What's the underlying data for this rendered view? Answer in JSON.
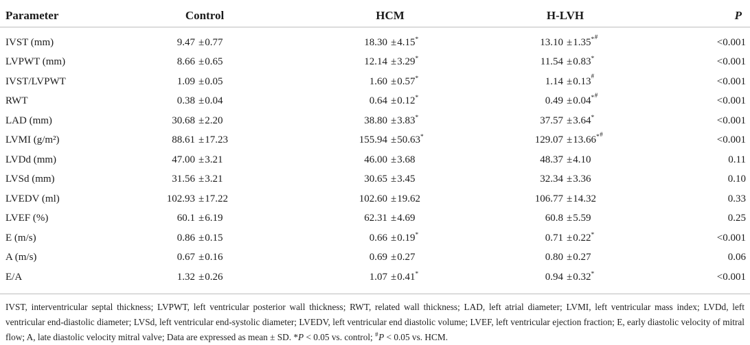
{
  "table": {
    "headers": {
      "parameter": "Parameter",
      "control": "Control",
      "hcm": "HCM",
      "hlvh": "H-LVH",
      "p": "P"
    },
    "plus_minus": "±",
    "rows": [
      {
        "param": "IVST (mm)",
        "control_mean": "9.47",
        "control_sd": "0.77",
        "control_sup": "",
        "hcm_mean": "18.30",
        "hcm_sd": "4.15",
        "hcm_sup": "*",
        "hlvh_mean": "13.10",
        "hlvh_sd": "1.35",
        "hlvh_sup": "*#",
        "p": "<0.001"
      },
      {
        "param": "LVPWT (mm)",
        "control_mean": "8.66",
        "control_sd": "0.65",
        "control_sup": "",
        "hcm_mean": "12.14",
        "hcm_sd": "3.29",
        "hcm_sup": "*",
        "hlvh_mean": "11.54",
        "hlvh_sd": "0.83",
        "hlvh_sup": "*",
        "p": "<0.001"
      },
      {
        "param": "IVST/LVPWT",
        "control_mean": "1.09",
        "control_sd": "0.05",
        "control_sup": "",
        "hcm_mean": "1.60",
        "hcm_sd": "0.57",
        "hcm_sup": "*",
        "hlvh_mean": "1.14",
        "hlvh_sd": "0.13",
        "hlvh_sup": "#",
        "p": "<0.001"
      },
      {
        "param": "RWT",
        "control_mean": "0.38",
        "control_sd": "0.04",
        "control_sup": "",
        "hcm_mean": "0.64",
        "hcm_sd": "0.12",
        "hcm_sup": "*",
        "hlvh_mean": "0.49",
        "hlvh_sd": "0.04",
        "hlvh_sup": "*#",
        "p": "<0.001"
      },
      {
        "param": "LAD (mm)",
        "control_mean": "30.68",
        "control_sd": "2.20",
        "control_sup": "",
        "hcm_mean": "38.80",
        "hcm_sd": "3.83",
        "hcm_sup": "*",
        "hlvh_mean": "37.57",
        "hlvh_sd": "3.64",
        "hlvh_sup": "*",
        "p": "<0.001"
      },
      {
        "param": "LVMI (g/m²)",
        "control_mean": "88.61",
        "control_sd": "17.23",
        "control_sup": "",
        "hcm_mean": "155.94",
        "hcm_sd": "50.63",
        "hcm_sup": "*",
        "hlvh_mean": "129.07",
        "hlvh_sd": "13.66",
        "hlvh_sup": "*#",
        "p": "<0.001"
      },
      {
        "param": "LVDd (mm)",
        "control_mean": "47.00",
        "control_sd": "3.21",
        "control_sup": "",
        "hcm_mean": "46.00",
        "hcm_sd": "3.68",
        "hcm_sup": "",
        "hlvh_mean": "48.37",
        "hlvh_sd": "4.10",
        "hlvh_sup": "",
        "p": "0.11"
      },
      {
        "param": "LVSd (mm)",
        "control_mean": "31.56",
        "control_sd": "3.21",
        "control_sup": "",
        "hcm_mean": "30.65",
        "hcm_sd": "3.45",
        "hcm_sup": "",
        "hlvh_mean": "32.34",
        "hlvh_sd": "3.36",
        "hlvh_sup": "",
        "p": "0.10"
      },
      {
        "param": "LVEDV (ml)",
        "control_mean": "102.93",
        "control_sd": "17.22",
        "control_sup": "",
        "hcm_mean": "102.60",
        "hcm_sd": "19.62",
        "hcm_sup": "",
        "hlvh_mean": "106.77",
        "hlvh_sd": "14.32",
        "hlvh_sup": "",
        "p": "0.33"
      },
      {
        "param": "LVEF (%)",
        "control_mean": "60.1",
        "control_sd": "6.19",
        "control_sup": "",
        "hcm_mean": "62.31",
        "hcm_sd": "4.69",
        "hcm_sup": "",
        "hlvh_mean": "60.8",
        "hlvh_sd": "5.59",
        "hlvh_sup": "",
        "p": "0.25"
      },
      {
        "param": "E (m/s)",
        "control_mean": "0.86",
        "control_sd": "0.15",
        "control_sup": "",
        "hcm_mean": "0.66",
        "hcm_sd": "0.19",
        "hcm_sup": "*",
        "hlvh_mean": "0.71",
        "hlvh_sd": "0.22",
        "hlvh_sup": "*",
        "p": "<0.001"
      },
      {
        "param": "A (m/s)",
        "control_mean": "0.67",
        "control_sd": "0.16",
        "control_sup": "",
        "hcm_mean": "0.69",
        "hcm_sd": "0.27",
        "hcm_sup": "",
        "hlvh_mean": "0.80",
        "hlvh_sd": "0.27",
        "hlvh_sup": "",
        "p": "0.06"
      },
      {
        "param": "E/A",
        "control_mean": "1.32",
        "control_sd": "0.26",
        "control_sup": "",
        "hcm_mean": "1.07",
        "hcm_sd": "0.41",
        "hcm_sup": "*",
        "hlvh_mean": "0.94",
        "hlvh_sd": "0.32",
        "hlvh_sup": "*",
        "p": "<0.001"
      }
    ]
  },
  "footnote": {
    "segments": [
      {
        "text": "IVST, interventricular septal thickness; LVPWT, left ventricular posterior wall thickness; RWT, related wall thickness; LAD, left atrial diameter; LVMI, left ventricular mass index; LVDd, left ventricular end-diastolic diameter; LVSd, left ventricular end-systolic diameter; LVEDV, left ventricular end diastolic volume; LVEF, left ventricular ejection fraction; E, early diastolic velocity of mitral flow; A, late diastolic velocity mitral valve; Data are expressed as mean ± SD. ",
        "style": "normal"
      },
      {
        "text": "*",
        "style": "normal"
      },
      {
        "text": "P",
        "style": "italic"
      },
      {
        "text": " < 0.05 vs. control; ",
        "style": "normal"
      },
      {
        "text": "#",
        "style": "sup"
      },
      {
        "text": "P",
        "style": "italic"
      },
      {
        "text": " < 0.05 vs. HCM.",
        "style": "normal"
      }
    ]
  },
  "colors": {
    "text": "#1b1b1b",
    "rule": "#bdbdbd",
    "background": "#ffffff"
  }
}
